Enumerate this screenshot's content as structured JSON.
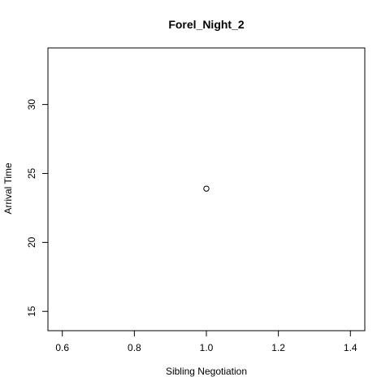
{
  "chart_data": {
    "type": "scatter",
    "title": "Forel_Night_2",
    "xlabel": "Sibling Negotiation",
    "ylabel": "Arrival Time",
    "xlim": [
      0.56,
      1.44
    ],
    "ylim": [
      13.6,
      34.1
    ],
    "x_ticks": [
      0.6,
      0.8,
      1.0,
      1.2,
      1.4
    ],
    "x_tick_labels": [
      "0.6",
      "0.8",
      "1.0",
      "1.2",
      "1.4"
    ],
    "y_ticks": [
      15,
      20,
      25,
      30
    ],
    "y_tick_labels": [
      "15",
      "20",
      "25",
      "30"
    ],
    "points": [
      {
        "x": 1.0,
        "y": 23.9
      }
    ],
    "marker": "open-circle",
    "grid": false,
    "legend": "none"
  }
}
